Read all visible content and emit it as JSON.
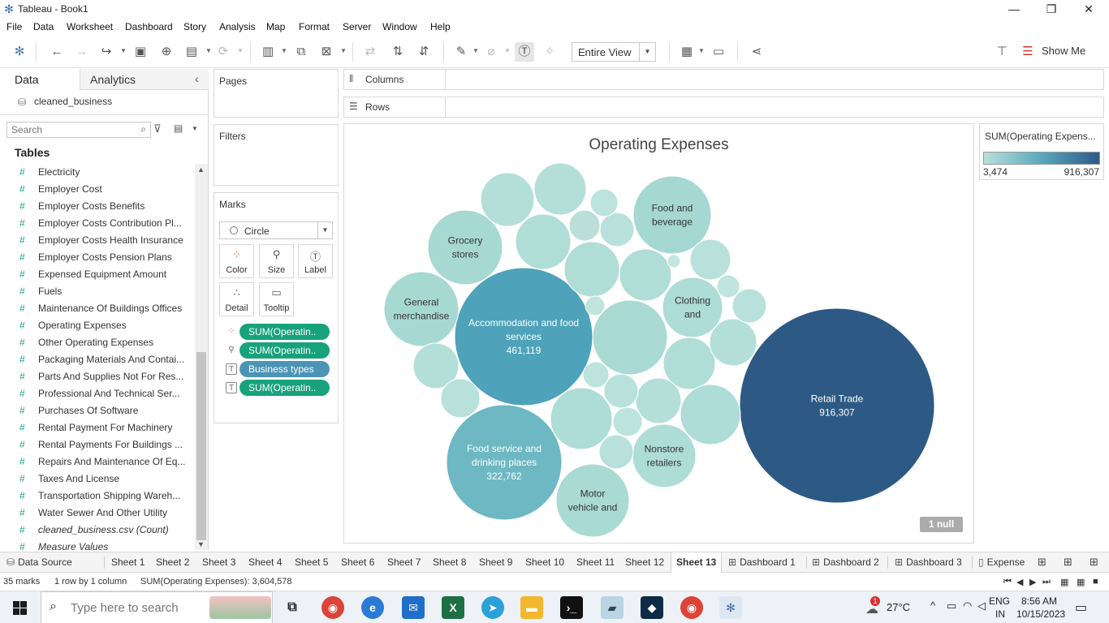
{
  "window": {
    "title": "Tableau - Book1",
    "minimize": "—",
    "restore": "❐",
    "close": "✕"
  },
  "menu": [
    "File",
    "Data",
    "Worksheet",
    "Dashboard",
    "Story",
    "Analysis",
    "Map",
    "Format",
    "Server",
    "Window",
    "Help"
  ],
  "toolbar": {
    "view_select": "Entire View",
    "show_me": "Show Me"
  },
  "left_pane": {
    "tab_data": "Data",
    "tab_analytics": "Analytics",
    "datasource": "cleaned_business",
    "search_placeholder": "Search",
    "tables_header": "Tables",
    "fields": [
      "Electricity",
      "Employer Cost",
      "Employer Costs Benefits",
      "Employer Costs Contribution Pl...",
      "Employer Costs Health Insurance",
      "Employer Costs Pension Plans",
      "Expensed Equipment Amount",
      "Fuels",
      "Maintenance Of Buildings Offices",
      "Operating Expenses",
      "Other Operating Expenses",
      "Packaging Materials And Contai...",
      "Parts And Supplies Not For Res...",
      "Professional And Technical Ser...",
      "Purchases Of Software",
      "Rental Payment For Machinery",
      "Rental Payments For Buildings ...",
      "Repairs And Maintenance Of Eq...",
      "Taxes And License",
      "Transportation Shipping Wareh...",
      "Water Sewer And Other Utility"
    ],
    "count_field": "cleaned_business.csv (Count)",
    "measure_values": "Measure Values"
  },
  "cards": {
    "pages": "Pages",
    "filters": "Filters",
    "marks": "Marks",
    "mark_type": "Circle",
    "columns": "Columns",
    "rows": "Rows",
    "mark_buttons": [
      "Color",
      "Size",
      "Label",
      "Detail",
      "Tooltip"
    ],
    "pills": [
      "SUM(Operatin..",
      "SUM(Operatin..",
      "Business types",
      "SUM(Operatin.."
    ]
  },
  "chart_data": {
    "type": "bubble",
    "title": "Operating Expenses",
    "measure": "SUM(Operating Expenses)",
    "color_range": [
      3474,
      916307
    ],
    "labeled_bubbles": [
      {
        "label": "Retail Trade",
        "value": 916307,
        "value_text": "916,307"
      },
      {
        "label": "Accommodation and food services",
        "value": 461119,
        "value_text": "461,119"
      },
      {
        "label": "Food service and drinking places",
        "value": 322762,
        "value_text": "322,762"
      },
      {
        "label": "Grocery stores"
      },
      {
        "label": "General merchandise"
      },
      {
        "label": "Food and beverage"
      },
      {
        "label": "Clothing and"
      },
      {
        "label": "Nonstore retailers"
      },
      {
        "label": "Motor vehicle and"
      }
    ],
    "null_badge": "1 null"
  },
  "legend": {
    "title": "SUM(Operating Expens...",
    "min": "3,474",
    "max": "916,307"
  },
  "sheet_tabs": {
    "datasource": "Data Source",
    "sheets": [
      "Sheet 1",
      "Sheet 2",
      "Sheet 3",
      "Sheet 4",
      "Sheet 5",
      "Sheet 6",
      "Sheet 7",
      "Sheet 8",
      "Sheet 9",
      "Sheet 10",
      "Sheet 11",
      "Sheet 12",
      "Sheet 13"
    ],
    "dashboards": [
      "Dashboard 1",
      "Dashboard 2",
      "Dashboard 3"
    ],
    "story": "Expense"
  },
  "status": {
    "marks": "35 marks",
    "rows_cols": "1 row by 1 column",
    "sum": "SUM(Operating Expenses): 3,604,578"
  },
  "taskbar": {
    "search_placeholder": "Type here to search",
    "weather": "27°C",
    "weather_badge": "1",
    "lang_1": "ENG",
    "lang_2": "IN",
    "time": "8:56 AM",
    "date": "10/15/2023"
  }
}
